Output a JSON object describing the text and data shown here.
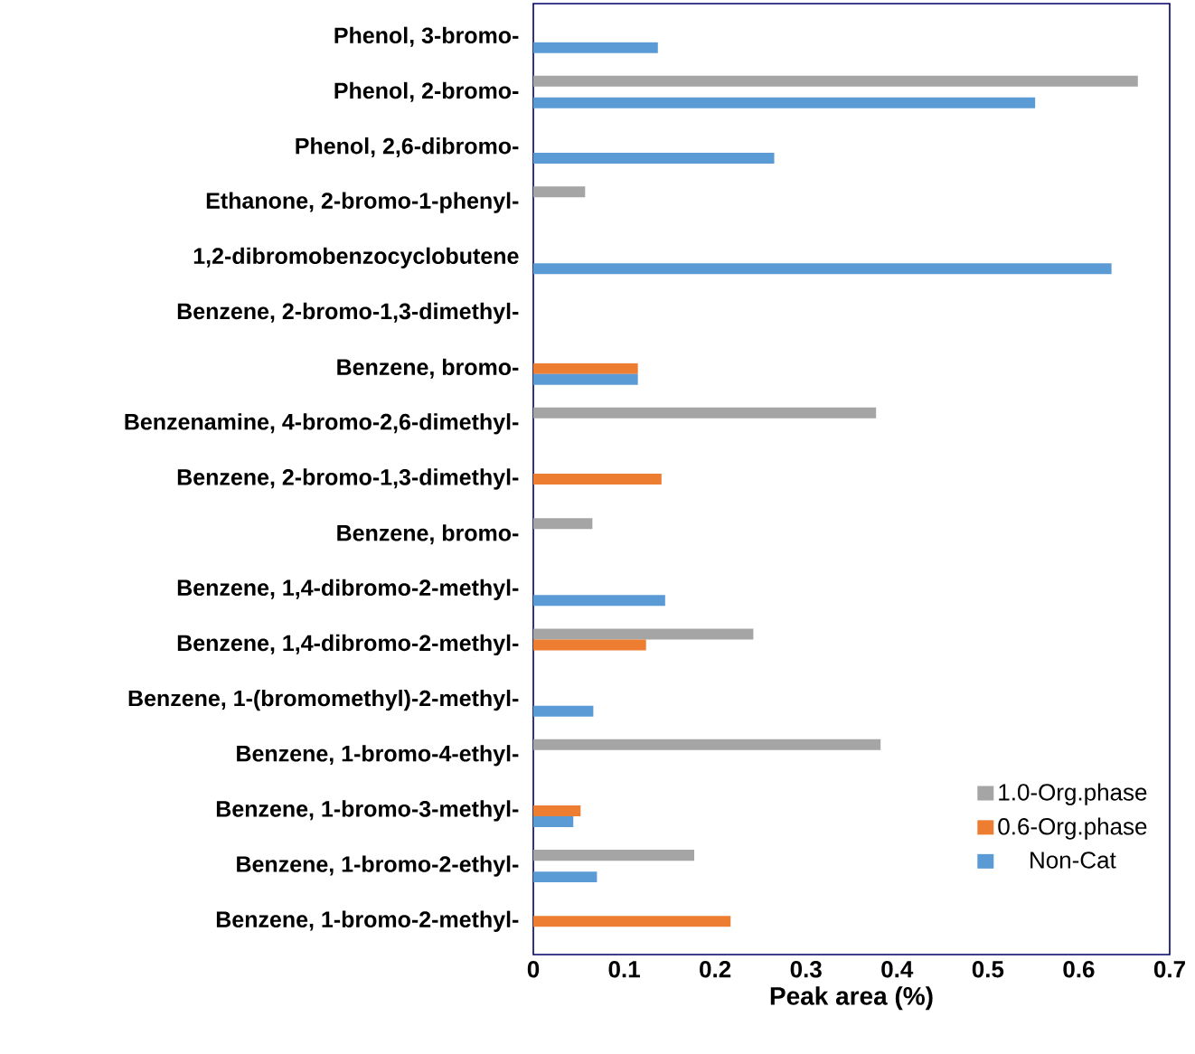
{
  "chart_data": {
    "type": "bar",
    "orientation": "horizontal",
    "xlabel": "Peak area (%)",
    "categories": [
      "Phenol, 3-bromo-",
      "Phenol, 2-bromo-",
      "Phenol, 2,6-dibromo-",
      "Ethanone, 2-bromo-1-phenyl-",
      "1,2-dibromobenzocyclobutene",
      "Benzene, 2-bromo-1,3-dimethyl-",
      "Benzene, bromo-",
      "Benzenamine, 4-bromo-2,6-dimethyl-",
      "Benzene, 2-bromo-1,3-dimethyl-",
      "Benzene, bromo-",
      "Benzene, 1,4-dibromo-2-methyl-",
      "Benzene, 1,4-dibromo-2-methyl-",
      "Benzene, 1-(bromomethyl)-2-methyl-",
      "Benzene, 1-bromo-4-ethyl-",
      "Benzene, 1-bromo-3-methyl-",
      "Benzene, 1-bromo-2-ethyl-",
      "Benzene, 1-bromo-2-methyl-"
    ],
    "series": [
      {
        "name": "1.0-Org.phase",
        "color": "#a5a5a5",
        "values": [
          null,
          0.665,
          null,
          0.057,
          null,
          null,
          null,
          0.377,
          null,
          0.065,
          null,
          0.242,
          null,
          0.382,
          null,
          0.177,
          null
        ]
      },
      {
        "name": "0.6-Org.phase",
        "color": "#ed7d31",
        "values": [
          null,
          null,
          null,
          null,
          null,
          null,
          0.115,
          null,
          0.141,
          null,
          null,
          0.124,
          null,
          null,
          0.052,
          null,
          0.217
        ]
      },
      {
        "name": "Non-Cat",
        "color": "#5b9bd5",
        "values": [
          0.137,
          0.552,
          0.265,
          null,
          0.636,
          null,
          0.115,
          null,
          null,
          null,
          0.145,
          null,
          0.066,
          null,
          0.044,
          0.07,
          null
        ]
      }
    ],
    "xlim": [
      0,
      0.7
    ],
    "xticks": [
      0,
      0.1,
      0.2,
      0.3,
      0.4,
      0.5,
      0.6,
      0.7
    ],
    "legend": "bottom right",
    "grid": false
  }
}
